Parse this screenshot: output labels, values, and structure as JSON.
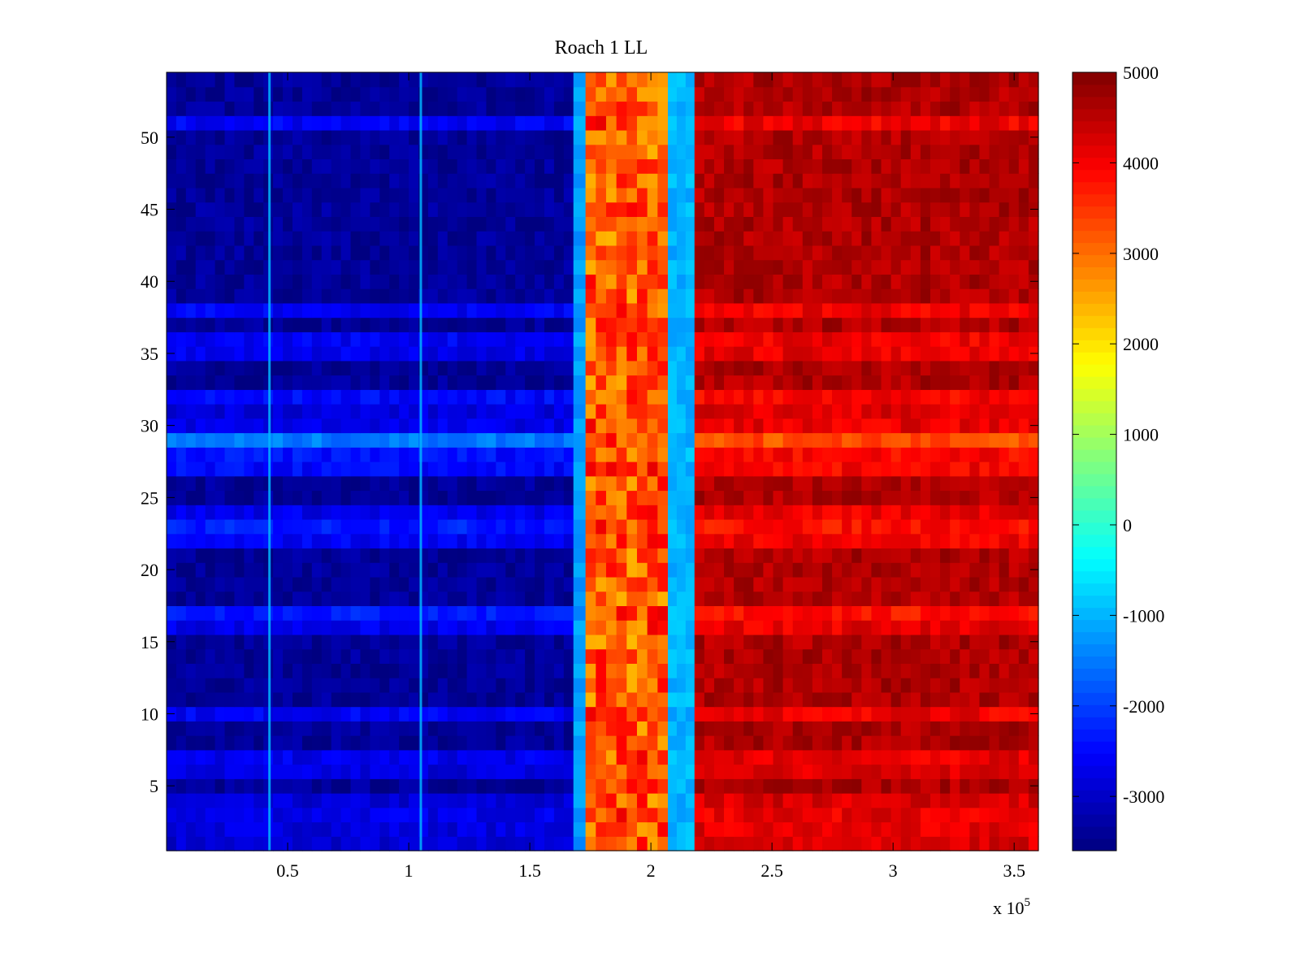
{
  "chart_data": {
    "type": "heatmap",
    "title": "Roach 1 LL",
    "xlabel": "",
    "ylabel": "",
    "x_range": [
      0,
      360000
    ],
    "y_range": [
      0.5,
      54.5
    ],
    "x_ticks": [
      50000,
      100000,
      150000,
      200000,
      250000,
      300000,
      350000
    ],
    "x_tick_labels": [
      "0.5",
      "1",
      "1.5",
      "2",
      "2.5",
      "3",
      "3.5"
    ],
    "x_exponent_label": "x 10",
    "x_exponent_power": "5",
    "y_ticks": [
      5,
      10,
      15,
      20,
      25,
      30,
      35,
      40,
      45,
      50
    ],
    "y_tick_labels": [
      "5",
      "10",
      "15",
      "20",
      "25",
      "30",
      "35",
      "40",
      "45",
      "50"
    ],
    "rows": 54,
    "colormap": "jet",
    "clim": [
      -3600,
      5000
    ],
    "colorbar": {
      "ticks": [
        5000,
        4000,
        3000,
        2000,
        1000,
        0,
        -1000,
        -2000,
        -3000
      ],
      "tick_labels": [
        "5000",
        "4000",
        "3000",
        "2000",
        "1000",
        "0",
        "-1000",
        "-2000",
        "-3000"
      ],
      "location": "right"
    },
    "column_segments": [
      {
        "x_start": 0,
        "x_end": 168000,
        "typical_value": -3300,
        "description": "low values (dark blue)"
      },
      {
        "x_start": 168000,
        "x_end": 173000,
        "typical_value": -1200,
        "description": "narrow transition"
      },
      {
        "x_start": 173000,
        "x_end": 207000,
        "typical_value": 3000,
        "description": "intermediate values (orange/yellow)"
      },
      {
        "x_start": 207000,
        "x_end": 218000,
        "typical_value": -1000,
        "description": "narrow cyan band"
      },
      {
        "x_start": 218000,
        "x_end": 360000,
        "typical_value": 4900,
        "description": "high values (dark red)"
      }
    ],
    "vertical_spikes": [
      {
        "x": 42500,
        "value": -1000
      },
      {
        "x": 105000,
        "value": -1000
      }
    ],
    "row_profiles": {
      "notable_rows": {
        "1": -2900,
        "2": -2800,
        "3": -2700,
        "4": -2900,
        "6": -2800,
        "7": -2700,
        "10": -2600,
        "16": -2700,
        "17": -2300,
        "22": -2600,
        "23": -2300,
        "24": -2700,
        "27": -2500,
        "28": -2400,
        "29": -1500,
        "30": -2700,
        "31": -2800,
        "32": -2500,
        "35": -2700,
        "36": -2600,
        "38": -2600,
        "51": -2600
      },
      "default_value": -3400
    }
  }
}
